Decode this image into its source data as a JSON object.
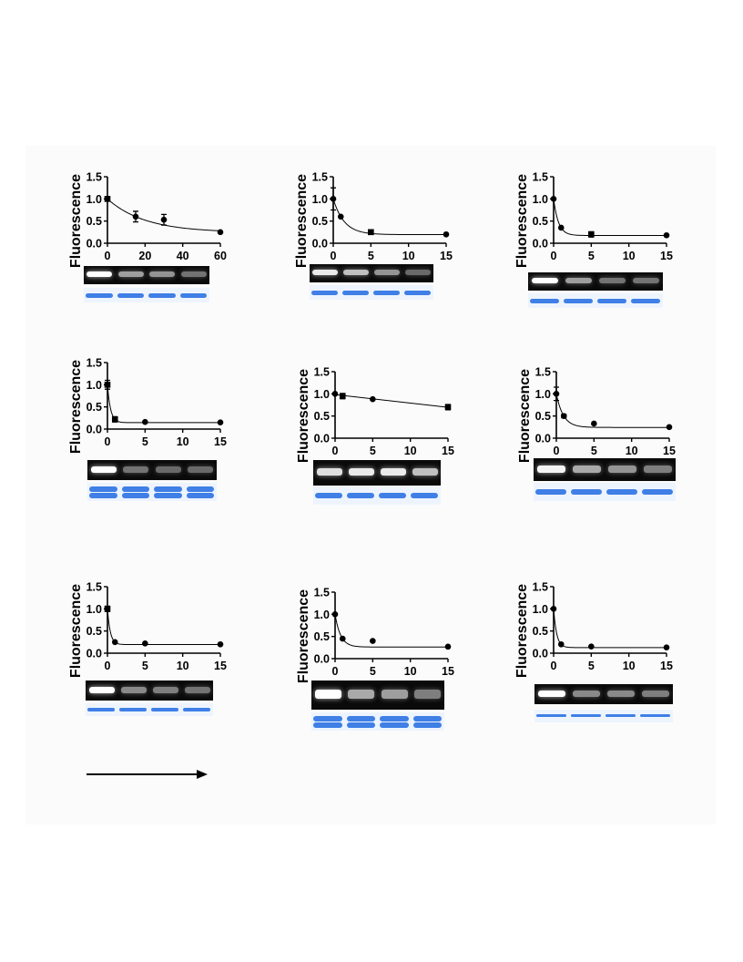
{
  "panels": [
    {
      "ylabel": "Fluorescence",
      "yticks": [
        "0.0",
        "0.5",
        "1.0",
        "1.5"
      ],
      "xticks": [
        "0",
        "20",
        "40",
        "60"
      ],
      "chart_data": {
        "type": "scatter",
        "xlim": [
          0,
          60
        ],
        "ylim": [
          0,
          1.5
        ],
        "ylabel": "Fluorescence",
        "points": [
          [
            0,
            1.0
          ],
          [
            15,
            0.6
          ],
          [
            30,
            0.53
          ],
          [
            60,
            0.25
          ]
        ],
        "errors": [
          0.05,
          0.12,
          0.12,
          0.02
        ],
        "markers": [
          "square",
          "circle",
          "circle",
          "circle"
        ],
        "fit": "exponential decay"
      },
      "gel_bands": [
        1.0,
        0.55,
        0.5,
        0.35
      ],
      "coomassie_style": "single"
    },
    {
      "ylabel": "Fluorescence",
      "yticks": [
        "0.0",
        "0.5",
        "1.0",
        "1.5"
      ],
      "xticks": [
        "0",
        "5",
        "10",
        "15"
      ],
      "chart_data": {
        "type": "scatter",
        "xlim": [
          0,
          15
        ],
        "ylim": [
          0,
          1.5
        ],
        "ylabel": "Fluorescence",
        "points": [
          [
            0,
            1.0
          ],
          [
            1,
            0.6
          ],
          [
            5,
            0.25
          ],
          [
            15,
            0.2
          ]
        ],
        "errors": [
          0.25,
          0.02,
          0.05,
          0.02
        ],
        "markers": [
          "circle",
          "circle",
          "square",
          "circle"
        ],
        "fit": "exponential decay"
      },
      "gel_bands": [
        0.9,
        0.7,
        0.5,
        0.3
      ],
      "coomassie_style": "single"
    },
    {
      "ylabel": "Fluorescence",
      "yticks": [
        "0.0",
        "0.5",
        "1.0",
        "1.5"
      ],
      "xticks": [
        "0",
        "5",
        "10",
        "15"
      ],
      "chart_data": {
        "type": "scatter",
        "xlim": [
          0,
          15
        ],
        "ylim": [
          0,
          1.5
        ],
        "ylabel": "Fluorescence",
        "points": [
          [
            0,
            1.0
          ],
          [
            1,
            0.35
          ],
          [
            5,
            0.2
          ],
          [
            15,
            0.18
          ]
        ],
        "errors": [
          0.02,
          0.02,
          0.06,
          0.02
        ],
        "markers": [
          "circle",
          "circle",
          "square",
          "circle"
        ],
        "fit": "exponential decay"
      },
      "gel_bands": [
        1.0,
        0.55,
        0.35,
        0.35
      ],
      "coomassie_style": "single"
    },
    {
      "ylabel": "Fluorescence",
      "yticks": [
        "0.0",
        "0.5",
        "1.0",
        "1.5"
      ],
      "xticks": [
        "0",
        "5",
        "10",
        "15"
      ],
      "chart_data": {
        "type": "scatter",
        "xlim": [
          0,
          15
        ],
        "ylim": [
          0,
          1.5
        ],
        "ylabel": "Fluorescence",
        "points": [
          [
            0,
            1.0
          ],
          [
            1,
            0.22
          ],
          [
            5,
            0.16
          ],
          [
            15,
            0.15
          ]
        ],
        "errors": [
          0.1,
          0.06,
          0.02,
          0.02
        ],
        "markers": [
          "square",
          "square",
          "circle",
          "circle"
        ],
        "fit": "exponential decay"
      },
      "gel_bands": [
        1.0,
        0.35,
        0.3,
        0.3
      ],
      "coomassie_style": "double"
    },
    {
      "ylabel": "Fluorescence",
      "yticks": [
        "0.0",
        "0.5",
        "1.0",
        "1.5"
      ],
      "xticks": [
        "0",
        "5",
        "10",
        "15"
      ],
      "chart_data": {
        "type": "scatter",
        "xlim": [
          0,
          15
        ],
        "ylim": [
          0,
          1.5
        ],
        "ylabel": "Fluorescence",
        "points": [
          [
            0,
            1.0
          ],
          [
            1,
            0.95
          ],
          [
            5,
            0.88
          ],
          [
            15,
            0.7
          ]
        ],
        "errors": [
          0.02,
          0.06,
          0.02,
          0.06
        ],
        "markers": [
          "circle",
          "square",
          "circle",
          "square"
        ],
        "fit": "linear decay"
      },
      "gel_bands": [
        0.85,
        0.9,
        0.9,
        0.7
      ],
      "coomassie_style": "single"
    },
    {
      "ylabel": "Fluorescence",
      "yticks": [
        "0.0",
        "0.5",
        "1.0",
        "1.5"
      ],
      "xticks": [
        "0",
        "5",
        "10",
        "15"
      ],
      "chart_data": {
        "type": "scatter",
        "xlim": [
          0,
          15
        ],
        "ylim": [
          0,
          1.5
        ],
        "ylabel": "Fluorescence",
        "points": [
          [
            0,
            1.0
          ],
          [
            1,
            0.5
          ],
          [
            5,
            0.33
          ],
          [
            15,
            0.25
          ]
        ],
        "errors": [
          0.15,
          0.04,
          0.01,
          0.01
        ],
        "markers": [
          "circle",
          "circle",
          "circle",
          "circle"
        ],
        "fit": "exponential decay"
      },
      "gel_bands": [
        0.95,
        0.6,
        0.5,
        0.4
      ],
      "coomassie_style": "single"
    },
    {
      "ylabel": "Fluorescence",
      "yticks": [
        "0.0",
        "0.5",
        "1.0",
        "1.5"
      ],
      "xticks": [
        "0",
        "5",
        "10",
        "15"
      ],
      "chart_data": {
        "type": "scatter",
        "xlim": [
          0,
          15
        ],
        "ylim": [
          0,
          1.5
        ],
        "ylabel": "Fluorescence",
        "points": [
          [
            0,
            1.0
          ],
          [
            1,
            0.25
          ],
          [
            5,
            0.22
          ],
          [
            15,
            0.2
          ]
        ],
        "errors": [
          0.06,
          0.02,
          0.02,
          0.02
        ],
        "markers": [
          "square",
          "circle",
          "circle",
          "circle"
        ],
        "fit": "exponential decay"
      },
      "gel_bands": [
        1.0,
        0.45,
        0.4,
        0.35
      ],
      "coomassie_style": "single"
    },
    {
      "ylabel": "Fluorescence",
      "yticks": [
        "0.0",
        "0.5",
        "1.0",
        "1.5"
      ],
      "xticks": [
        "0",
        "5",
        "10",
        "15"
      ],
      "chart_data": {
        "type": "scatter",
        "xlim": [
          0,
          15
        ],
        "ylim": [
          0,
          1.5
        ],
        "ylabel": "Fluorescence",
        "points": [
          [
            0,
            1.0
          ],
          [
            1,
            0.45
          ],
          [
            5,
            0.4
          ],
          [
            15,
            0.27
          ]
        ],
        "errors": [
          0.02,
          0.02,
          0.02,
          0.02
        ],
        "markers": [
          "circle",
          "circle",
          "circle",
          "circle"
        ],
        "fit": "exponential decay"
      },
      "gel_bands": [
        1.0,
        0.6,
        0.55,
        0.4
      ],
      "coomassie_style": "double"
    },
    {
      "ylabel": "Fluorescence",
      "yticks": [
        "0.0",
        "0.5",
        "1.0",
        "1.5"
      ],
      "xticks": [
        "0",
        "5",
        "10",
        "15"
      ],
      "chart_data": {
        "type": "scatter",
        "xlim": [
          0,
          15
        ],
        "ylim": [
          0,
          1.5
        ],
        "ylabel": "Fluorescence",
        "points": [
          [
            0,
            1.0
          ],
          [
            1,
            0.2
          ],
          [
            5,
            0.15
          ],
          [
            15,
            0.13
          ]
        ],
        "errors": [
          0.02,
          0.02,
          0.02,
          0.02
        ],
        "markers": [
          "circle",
          "circle",
          "circle",
          "circle"
        ],
        "fit": "exponential decay"
      },
      "gel_bands": [
        1.0,
        0.45,
        0.45,
        0.4
      ],
      "coomassie_style": "thin"
    }
  ],
  "colors": {
    "gel_background": "#0a0a0a",
    "coomassie_band": "#3f7fe6",
    "coomassie_background": "#eef4fd"
  }
}
